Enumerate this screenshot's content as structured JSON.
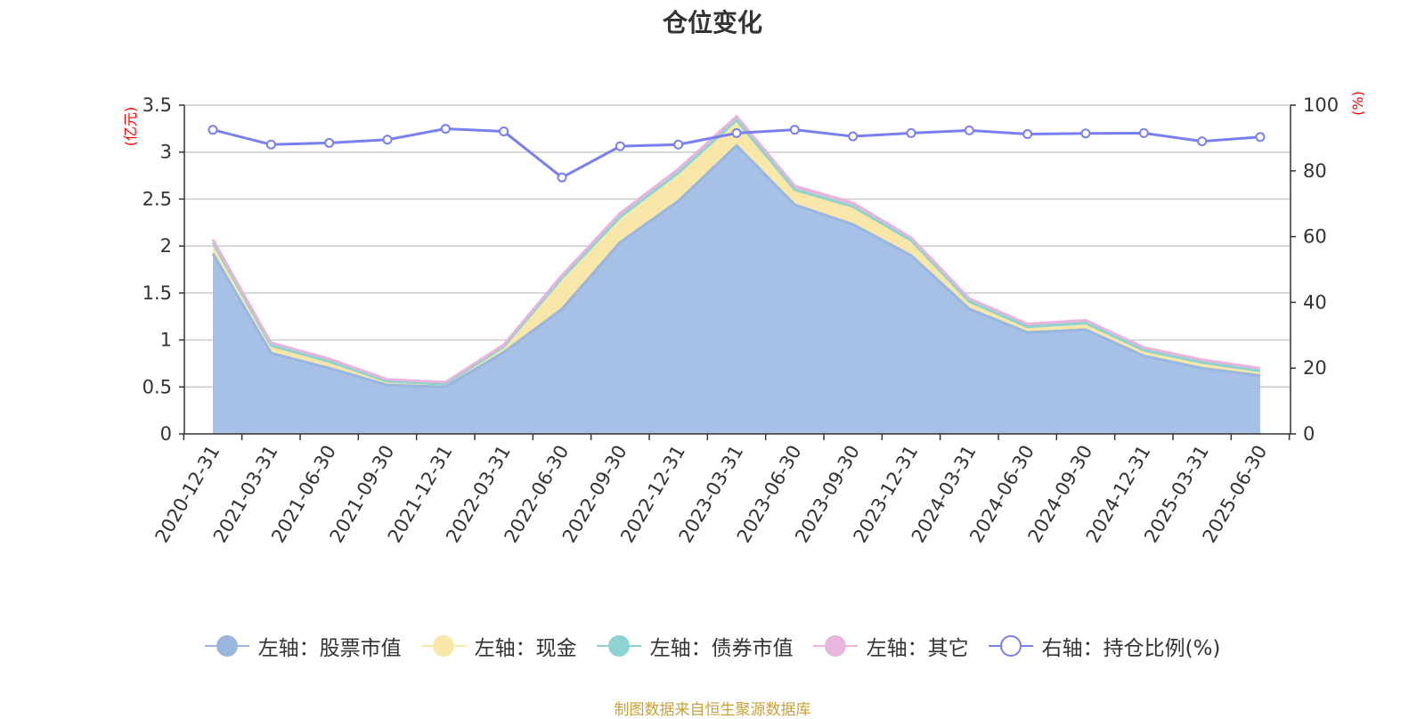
{
  "title": "仓位变化",
  "source_note": "制图数据来自恒生聚源数据库",
  "colors": {
    "stock": "#a7c0e6",
    "stock_line": "#9ab5de",
    "cash": "#f8e7a8",
    "cash_line": "#f5e39c",
    "bond": "#8dd3d3",
    "other": "#e8b6dc",
    "other_line": "#e8b4dc",
    "ratio": "#7a7ff0",
    "grid": "#cccccc",
    "axis": "#333333",
    "unit": "#ff0000"
  },
  "legend": [
    {
      "label": "左轴：股票市值",
      "icon": "filled-circle",
      "color": "#9ab5de"
    },
    {
      "label": "左轴：现金",
      "icon": "filled-circle",
      "color": "#f8e7a8"
    },
    {
      "label": "左轴：债券市值",
      "icon": "filled-circle",
      "color": "#8dd3d3"
    },
    {
      "label": "左轴：其它",
      "icon": "filled-circle",
      "color": "#e8b6dc"
    },
    {
      "label": "右轴：持仓比例(%)",
      "icon": "hollow-circle",
      "color": "#7a7ff0"
    }
  ],
  "chart_data": {
    "type": "area",
    "title": "仓位变化",
    "x": [
      "2020-12-31",
      "2021-03-31",
      "2021-06-30",
      "2021-09-30",
      "2021-12-31",
      "2022-03-31",
      "2022-06-30",
      "2022-09-30",
      "2022-12-31",
      "2023-03-31",
      "2023-06-30",
      "2023-09-30",
      "2023-12-31",
      "2024-03-31",
      "2024-06-30",
      "2024-09-30",
      "2024-12-31",
      "2025-03-31",
      "2025-06-30"
    ],
    "y_left": {
      "unit": "(亿元)",
      "min": 0,
      "max": 3.5,
      "ticks": [
        "0",
        "0.5",
        "1",
        "1.5",
        "2",
        "2.5",
        "3",
        "3.5"
      ]
    },
    "y_right": {
      "unit": "(%)",
      "min": 0,
      "max": 100,
      "ticks": [
        "0",
        "20",
        "40",
        "60",
        "80",
        "100"
      ]
    },
    "grid": true,
    "legend_position": "bottom",
    "series": [
      {
        "name": "左轴：股票市值",
        "axis": "left",
        "stacked": true,
        "kind": "area",
        "values": [
          1.92,
          0.86,
          0.7,
          0.52,
          0.5,
          0.87,
          1.33,
          2.04,
          2.48,
          3.07,
          2.44,
          2.23,
          1.9,
          1.33,
          1.08,
          1.11,
          0.83,
          0.7,
          0.62
        ]
      },
      {
        "name": "左轴：现金",
        "axis": "left",
        "stacked": true,
        "kind": "area",
        "values": [
          0.12,
          0.08,
          0.07,
          0.04,
          0.03,
          0.06,
          0.33,
          0.27,
          0.3,
          0.27,
          0.16,
          0.19,
          0.16,
          0.08,
          0.06,
          0.07,
          0.06,
          0.06,
          0.05
        ]
      },
      {
        "name": "左轴：债券市值",
        "axis": "left",
        "stacked": true,
        "kind": "area",
        "values": [
          0,
          0,
          0,
          0,
          0,
          0,
          0,
          0,
          0,
          0,
          0,
          0,
          0,
          0,
          0,
          0,
          0,
          0,
          0
        ]
      },
      {
        "name": "左轴：其它",
        "axis": "left",
        "stacked": true,
        "kind": "area",
        "values": [
          0.03,
          0.03,
          0.03,
          0.02,
          0.02,
          0.02,
          0.03,
          0.04,
          0.04,
          0.04,
          0.04,
          0.04,
          0.03,
          0.03,
          0.03,
          0.03,
          0.03,
          0.03,
          0.03
        ]
      },
      {
        "name": "右轴：持仓比例(%)",
        "axis": "right",
        "kind": "line",
        "values": [
          92.5,
          88.0,
          88.5,
          89.5,
          92.8,
          92.0,
          78.0,
          87.5,
          88.0,
          91.5,
          92.5,
          90.5,
          91.5,
          92.3,
          91.2,
          91.4,
          91.5,
          89.0,
          90.3
        ]
      }
    ]
  }
}
